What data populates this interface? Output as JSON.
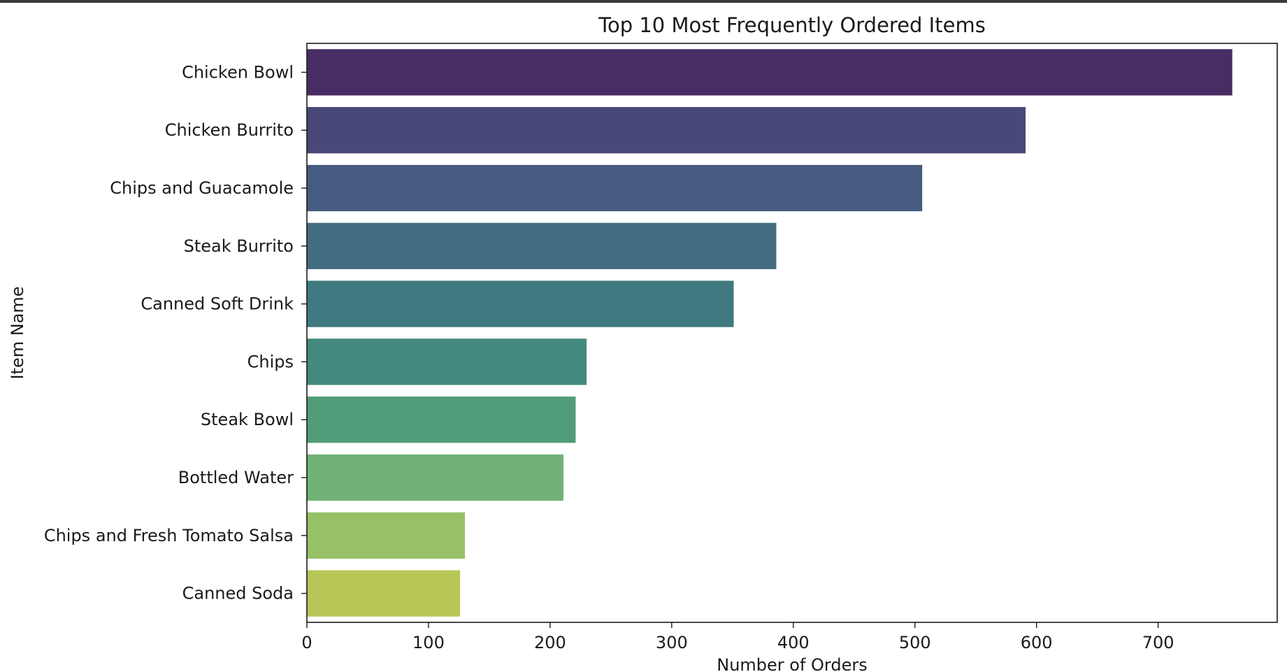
{
  "chart_data": {
    "type": "bar",
    "orientation": "horizontal",
    "title": "Top 10 Most Frequently Ordered Items",
    "xlabel": "Number of Orders",
    "ylabel": "Item Name",
    "xlim": [
      0,
      800
    ],
    "xticks": [
      0,
      100,
      200,
      300,
      400,
      500,
      600,
      700
    ],
    "grid": false,
    "categories": [
      "Chicken Bowl",
      "Chicken Burrito",
      "Chips and Guacamole",
      "Steak Burrito",
      "Canned Soft Drink",
      "Chips",
      "Steak Bowl",
      "Bottled Water",
      "Chips and Fresh Tomato Salsa",
      "Canned Soda"
    ],
    "values": [
      761,
      591,
      506,
      386,
      351,
      230,
      221,
      211,
      130,
      126
    ],
    "colors": [
      "#472d63",
      "#484879",
      "#465b7f",
      "#436c80",
      "#3f7a80",
      "#43897e",
      "#519c79",
      "#71b376",
      "#96c166",
      "#b8c658"
    ]
  }
}
